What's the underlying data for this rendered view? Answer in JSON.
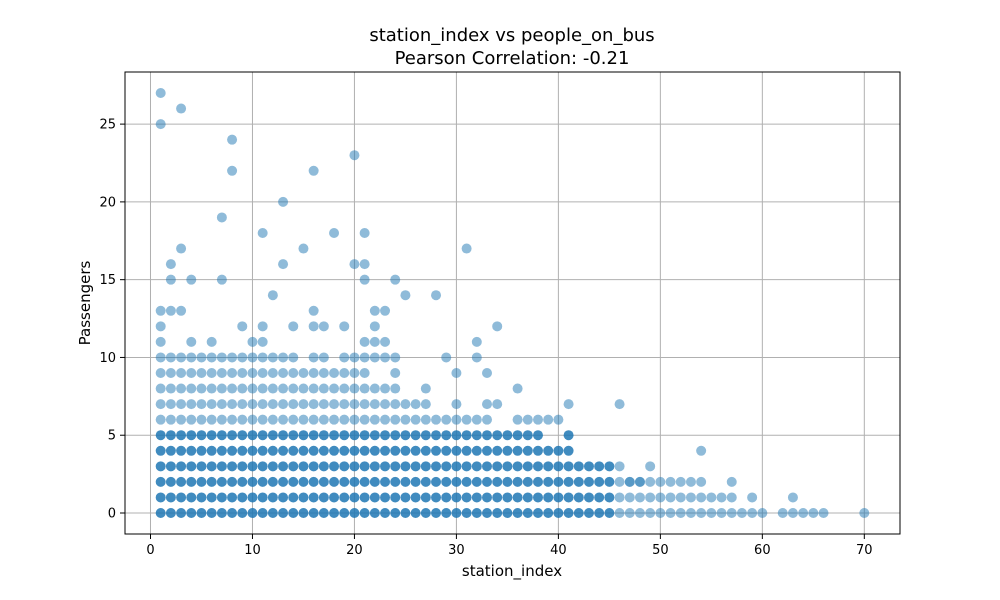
{
  "chart_data": {
    "type": "scatter",
    "title_line1": "station_index vs people_on_bus",
    "title_line2": "Pearson Correlation: -0.21",
    "xlabel": "station_index",
    "ylabel": "Passengers",
    "xlim": [
      -2.5,
      73.5
    ],
    "ylim": [
      -1.35,
      28.35
    ],
    "xticks": [
      0,
      10,
      20,
      30,
      40,
      50,
      60,
      70
    ],
    "yticks": [
      0,
      5,
      10,
      15,
      20,
      25
    ],
    "grid": true,
    "color": "#1f77b4",
    "dense_rows": [
      {
        "xmin": 1,
        "xmax": 66,
        "ys": [
          0
        ]
      },
      {
        "xmin": 1,
        "xmax": 63,
        "ys": [
          1
        ]
      },
      {
        "xmin": 1,
        "xmax": 57,
        "ys": [
          2
        ]
      },
      {
        "xmin": 1,
        "xmax": 49,
        "ys": [
          3
        ]
      },
      {
        "xmin": 1,
        "xmax": 44,
        "ys": [
          4
        ]
      },
      {
        "xmin": 1,
        "xmax": 41,
        "ys": [
          5
        ]
      },
      {
        "xmin": 1,
        "xmax": 36,
        "ys": [
          6
        ]
      },
      {
        "xmin": 1,
        "xmax": 30,
        "ys": [
          7
        ]
      },
      {
        "xmin": 1,
        "xmax": 27,
        "ys": [
          8
        ]
      },
      {
        "xmin": 1,
        "xmax": 24,
        "ys": [
          9
        ]
      },
      {
        "xmin": 1,
        "xmax": 21,
        "ys": [
          10
        ]
      }
    ],
    "skip_points": [
      [
        61,
        0
      ],
      [
        62,
        1
      ],
      [
        64,
        1
      ],
      [
        65,
        1
      ],
      [
        66,
        1
      ],
      [
        58,
        1
      ],
      [
        60,
        1
      ],
      [
        61,
        1
      ],
      [
        55,
        2
      ],
      [
        56,
        2
      ],
      [
        47,
        3
      ],
      [
        48,
        3
      ],
      [
        42,
        4
      ],
      [
        43,
        4
      ],
      [
        44,
        4
      ],
      [
        39,
        5
      ],
      [
        40,
        5
      ],
      [
        34,
        6
      ],
      [
        35,
        6
      ],
      [
        28,
        7
      ],
      [
        29,
        7
      ],
      [
        25,
        8
      ],
      [
        26,
        8
      ],
      [
        22,
        9
      ],
      [
        23,
        9
      ],
      [
        15,
        10
      ],
      [
        18,
        10
      ]
    ],
    "points": [
      [
        70,
        0
      ],
      [
        47,
        2
      ],
      [
        48,
        2
      ],
      [
        54,
        4
      ],
      [
        46,
        7
      ],
      [
        41,
        7
      ],
      [
        37,
        6
      ],
      [
        38,
        6
      ],
      [
        39,
        6
      ],
      [
        40,
        6
      ],
      [
        36,
        8
      ],
      [
        33,
        7
      ],
      [
        34,
        7
      ],
      [
        30,
        9
      ],
      [
        33,
        9
      ],
      [
        29,
        10
      ],
      [
        32,
        10
      ],
      [
        22,
        10
      ],
      [
        23,
        10
      ],
      [
        24,
        10
      ],
      [
        1,
        11
      ],
      [
        4,
        11
      ],
      [
        6,
        11
      ],
      [
        10,
        11
      ],
      [
        11,
        11
      ],
      [
        21,
        11
      ],
      [
        22,
        11
      ],
      [
        23,
        11
      ],
      [
        32,
        11
      ],
      [
        1,
        12
      ],
      [
        9,
        12
      ],
      [
        11,
        12
      ],
      [
        14,
        12
      ],
      [
        16,
        12
      ],
      [
        17,
        12
      ],
      [
        19,
        12
      ],
      [
        22,
        12
      ],
      [
        34,
        12
      ],
      [
        1,
        13
      ],
      [
        2,
        13
      ],
      [
        3,
        13
      ],
      [
        16,
        13
      ],
      [
        22,
        13
      ],
      [
        23,
        13
      ],
      [
        12,
        14
      ],
      [
        25,
        14
      ],
      [
        28,
        14
      ],
      [
        2,
        15
      ],
      [
        4,
        15
      ],
      [
        7,
        15
      ],
      [
        21,
        15
      ],
      [
        24,
        15
      ],
      [
        2,
        16
      ],
      [
        13,
        16
      ],
      [
        20,
        16
      ],
      [
        21,
        16
      ],
      [
        3,
        17
      ],
      [
        15,
        17
      ],
      [
        31,
        17
      ],
      [
        11,
        18
      ],
      [
        18,
        18
      ],
      [
        21,
        18
      ],
      [
        7,
        19
      ],
      [
        13,
        20
      ],
      [
        8,
        22
      ],
      [
        16,
        22
      ],
      [
        20,
        23
      ],
      [
        8,
        24
      ],
      [
        1,
        25
      ],
      [
        3,
        26
      ],
      [
        1,
        27
      ]
    ]
  }
}
